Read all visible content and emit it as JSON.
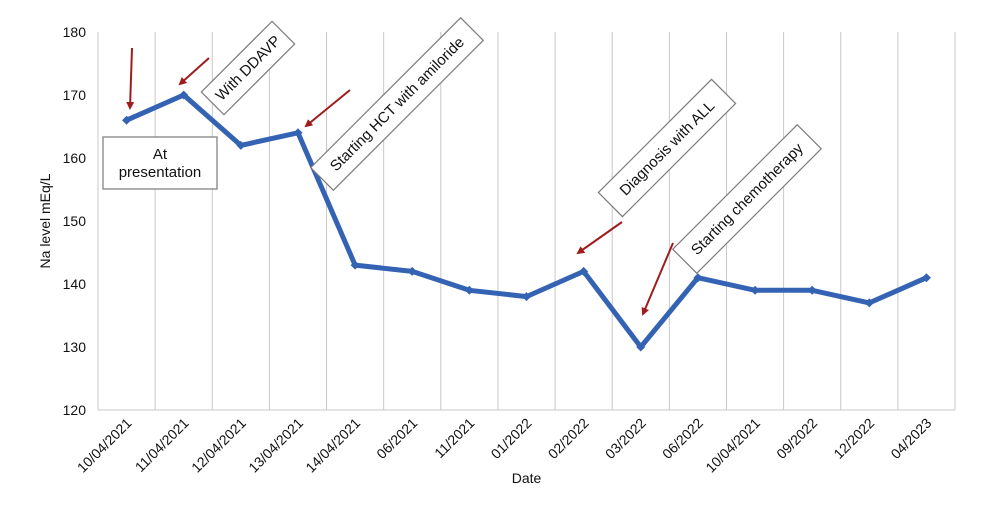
{
  "chart_data": {
    "type": "line",
    "title": "",
    "xlabel": "Date",
    "ylabel": "Na level mEq/L",
    "ylim": [
      120,
      180
    ],
    "yticks": [
      120,
      130,
      140,
      150,
      160,
      170,
      180
    ],
    "grid": "vertical",
    "categories": [
      "10/04/2021",
      "11/04/2021",
      "12/04/2021",
      "13/04/2021",
      "14/04/2021",
      "06/2021",
      "11/2021",
      "01/2022",
      "02/2022",
      "03/2022",
      "06/2022",
      "10/04/2021",
      "09/2022",
      "12/2022",
      "04/2023"
    ],
    "series": [
      {
        "values": [
          166,
          170,
          162,
          164,
          143,
          142,
          139,
          138,
          142,
          130,
          141,
          139,
          139,
          137,
          141
        ],
        "color": "#3563b4"
      }
    ],
    "annotations": [
      {
        "text": "At presentation",
        "lines": [
          "At",
          "presentation"
        ],
        "rotated": false,
        "target_index": 0
      },
      {
        "text": "With DDAVP",
        "rotated": true,
        "target_index": 1
      },
      {
        "text": "Starting HCT with amiloride",
        "rotated": true,
        "target_index": 3
      },
      {
        "text": "Diagnosis with ALL",
        "rotated": true,
        "target_index": 8
      },
      {
        "text": "Starting chemotherapy",
        "rotated": true,
        "target_index": 9
      }
    ],
    "arrow_color": "#a01c1c"
  }
}
